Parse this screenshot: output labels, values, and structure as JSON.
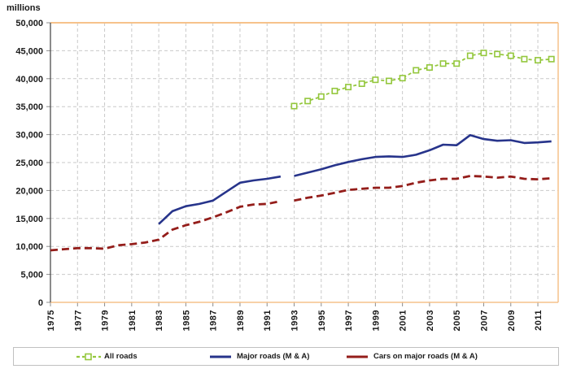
{
  "chart_data": {
    "type": "line",
    "title": "",
    "unit_label": "millions",
    "xlabel": "",
    "ylabel": "millions",
    "xlim": [
      1975,
      2012.5
    ],
    "ylim": [
      0,
      50000
    ],
    "x_tick_years": [
      1975,
      1977,
      1979,
      1981,
      1983,
      1985,
      1987,
      1989,
      1991,
      1993,
      1995,
      1997,
      1999,
      2001,
      2003,
      2005,
      2007,
      2009,
      2011
    ],
    "y_ticks": [
      {
        "value": 50000,
        "label": "50,000"
      },
      {
        "value": 45000,
        "label": "45,000"
      },
      {
        "value": 40000,
        "label": "40,000"
      },
      {
        "value": 35000,
        "label": "35,000"
      },
      {
        "value": 30000,
        "label": "30,000"
      },
      {
        "value": 25000,
        "label": "25,000"
      },
      {
        "value": 20000,
        "label": "20,000"
      },
      {
        "value": 15000,
        "label": "15,000"
      },
      {
        "value": 10000,
        "label": "10,000"
      },
      {
        "value": 5000,
        "label": "5,000"
      },
      {
        "value": 0,
        "label": "0"
      }
    ],
    "grid": true,
    "legend_position": "bottom",
    "colors": {
      "frame": "#f6c28b",
      "gridline": "#c9c9c9",
      "axis": "#4d4d4d",
      "tick": "#8c8c8c",
      "text": "#1a1a1a"
    },
    "series": [
      {
        "name": "All roads",
        "color": "#94c73d",
        "style": "dashed",
        "dash": "4,3",
        "line_width": 1.8,
        "marker": "square",
        "segments": [
          {
            "start_year": 1993,
            "values": [
              35100,
              36000,
              36800,
              37800,
              38500,
              39100,
              39800,
              39600,
              40100,
              41500,
              42000,
              42700,
              42700,
              44100,
              44600,
              44400,
              44100,
              43500,
              43300,
              43500
            ]
          }
        ]
      },
      {
        "name": "Major roads (M & A)",
        "color": "#27348b",
        "style": "solid",
        "dash": "",
        "line_width": 2.6,
        "marker": "none",
        "segments": [
          {
            "start_year": 1983,
            "values": [
              14000,
              16300,
              17200,
              17600,
              18200,
              19800,
              21400,
              21800,
              22100,
              22500
            ]
          },
          {
            "start_year": 1993,
            "values": [
              22600,
              23200,
              23800,
              24500,
              25100,
              25600,
              26000,
              26100,
              26000,
              26400,
              27200,
              28200,
              28100,
              29900,
              29200,
              28900,
              29000,
              28500,
              28600,
              28800
            ]
          }
        ]
      },
      {
        "name": "Cars on major roads (M & A)",
        "color": "#941d1a",
        "style": "dashed",
        "dash": "9,5",
        "line_width": 2.8,
        "marker": "none",
        "segments": [
          {
            "start_year": 1975,
            "values": [
              9300,
              9500,
              9700,
              9700,
              9600,
              10200,
              10400,
              10700,
              11200,
              13000,
              13800,
              14400,
              15200,
              16100,
              17100,
              17500,
              17600,
              18100
            ]
          },
          {
            "start_year": 1993,
            "values": [
              18200,
              18700,
              19100,
              19600,
              20100,
              20300,
              20500,
              20500,
              20800,
              21400,
              21800,
              22100,
              22100,
              22600,
              22500,
              22300,
              22500,
              22100,
              22000,
              22200
            ]
          }
        ]
      }
    ]
  }
}
